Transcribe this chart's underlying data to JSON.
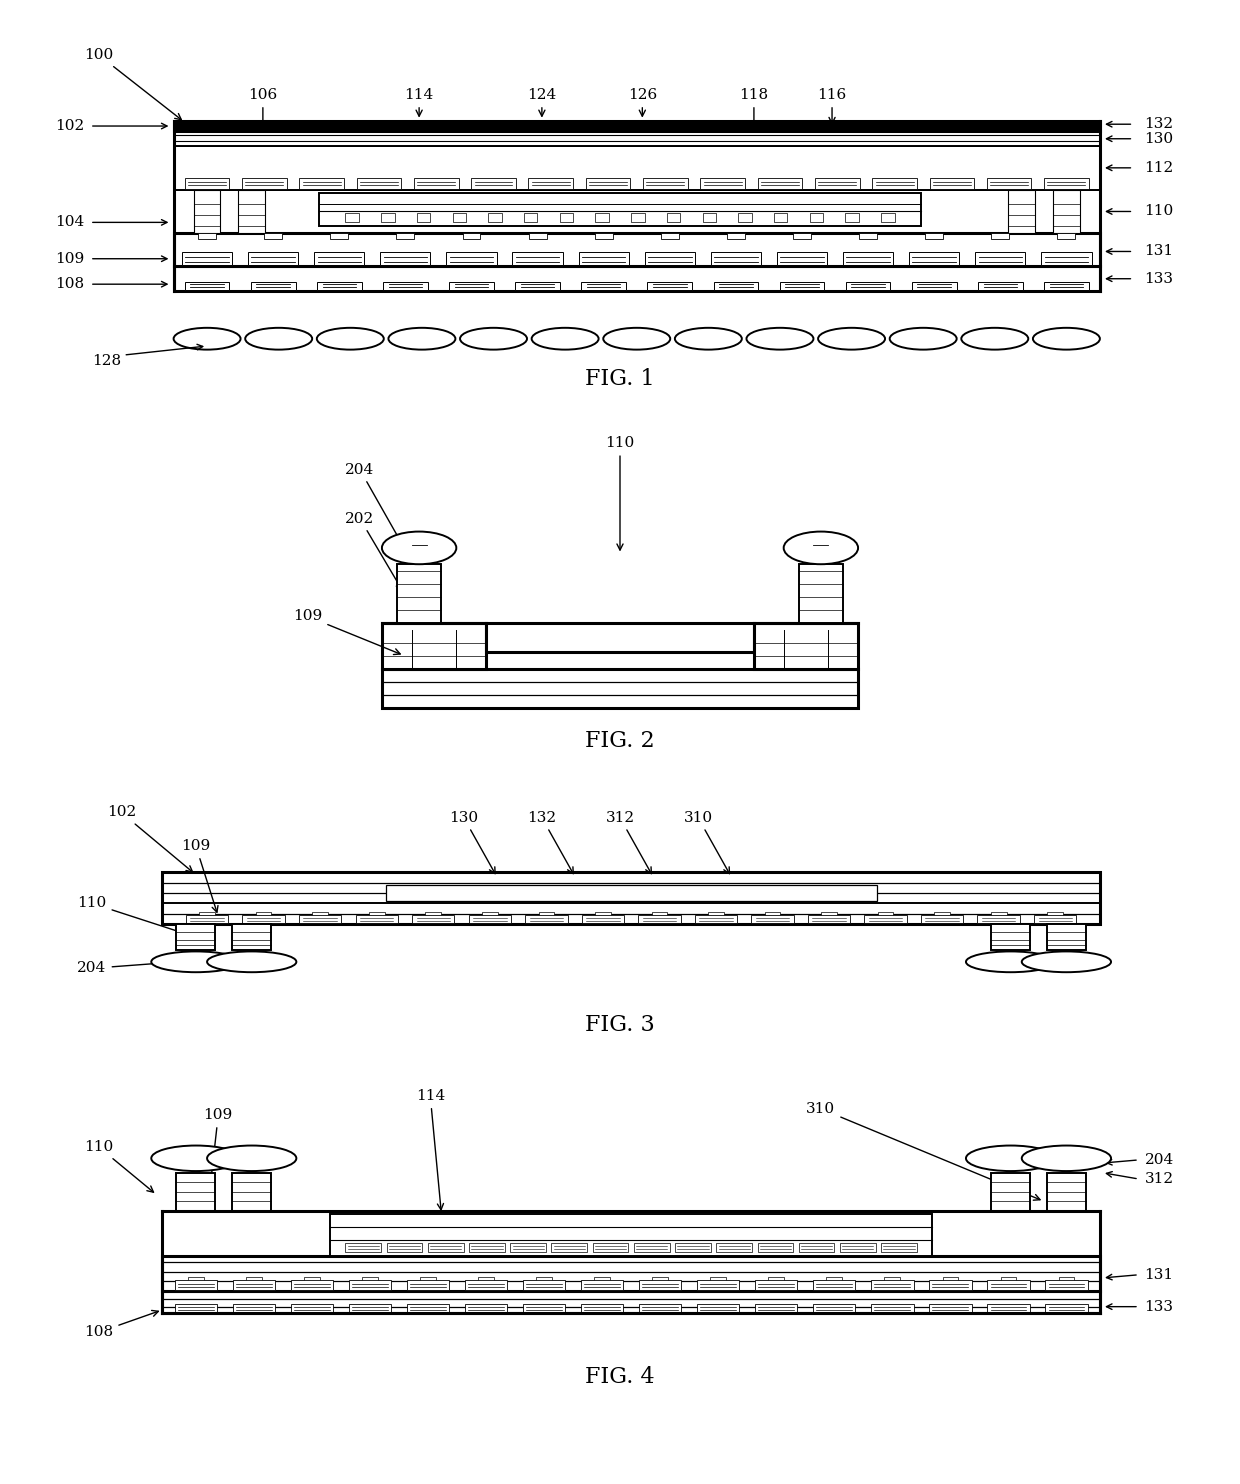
{
  "bg_color": "#ffffff",
  "line_color": "#000000",
  "fig_label_fontsize": 16,
  "annotation_fontsize": 11,
  "fig1_bounds": [
    0.05,
    0.735,
    0.9,
    0.245
  ],
  "fig2_bounds": [
    0.2,
    0.49,
    0.6,
    0.22
  ],
  "fig3_bounds": [
    0.05,
    0.295,
    0.9,
    0.175
  ],
  "fig4_bounds": [
    0.05,
    0.055,
    0.9,
    0.215
  ]
}
